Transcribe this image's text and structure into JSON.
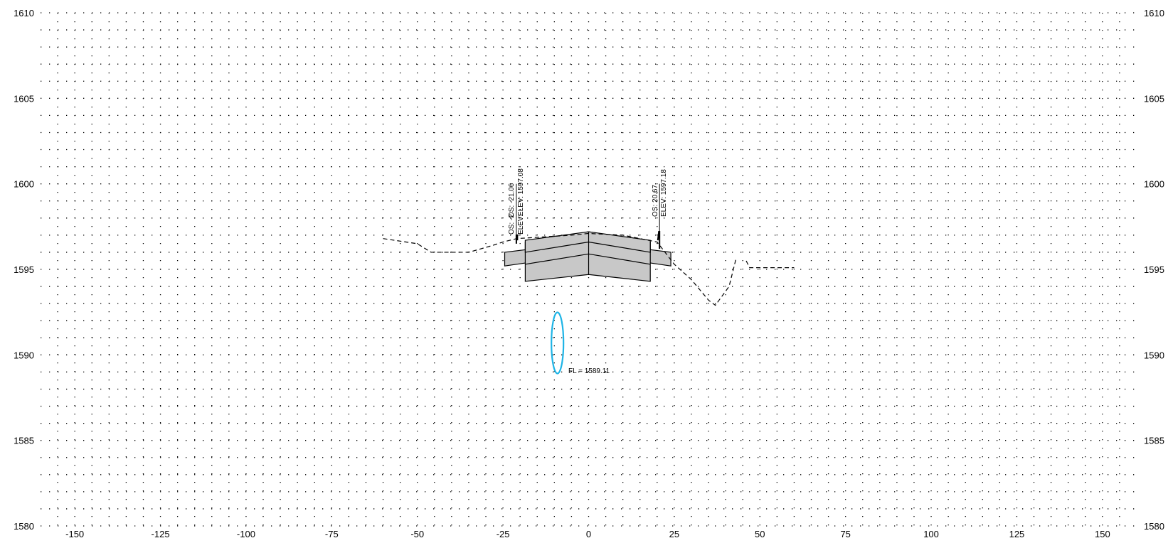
{
  "section": {
    "x_range": [
      -160,
      160
    ],
    "y_range": [
      1580,
      1610
    ],
    "y_minor_step": 1,
    "x_minor_step": 5,
    "x_ticks": [
      -150,
      -125,
      -100,
      -75,
      -50,
      -25,
      0,
      25,
      50,
      75,
      100,
      125,
      150
    ],
    "y_ticks": [
      1580,
      1585,
      1590,
      1595,
      1600,
      1605,
      1610
    ],
    "grid": "dotted",
    "colors": {
      "grid": "#000000",
      "ground": "#000000",
      "pavement_fill": "#c8c8c8",
      "pipe": "#1eb4e6"
    },
    "ground_line": [
      [
        -60,
        1596.8
      ],
      [
        -50,
        1596.5
      ],
      [
        -46,
        1596.0
      ],
      [
        -35,
        1596.0
      ],
      [
        -28,
        1596.4
      ],
      [
        -25,
        1596.6
      ],
      [
        -21,
        1596.8
      ],
      [
        -5,
        1597.0
      ],
      [
        0,
        1597.1
      ],
      [
        10,
        1597.0
      ],
      [
        20,
        1596.6
      ],
      [
        25,
        1595.3
      ],
      [
        30,
        1594.4
      ],
      [
        35,
        1593.2
      ],
      [
        37,
        1592.9
      ],
      [
        41,
        1594.0
      ],
      [
        43,
        1595.6
      ]
    ],
    "ground_line_right": [
      [
        46,
        1595.5
      ],
      [
        47,
        1595.1
      ],
      [
        60,
        1595.1
      ]
    ],
    "annotations": {
      "left_offset": "OS: -21.06",
      "left_elev": "ELEV: 1597.08",
      "left_offset_overlap": "OS: -2",
      "left_elev_overlap": "ELEV:",
      "right_offset": "OS: 20.67",
      "right_elev": "ELEV: 1597.18",
      "flowline": "FL = 1589.11"
    }
  }
}
